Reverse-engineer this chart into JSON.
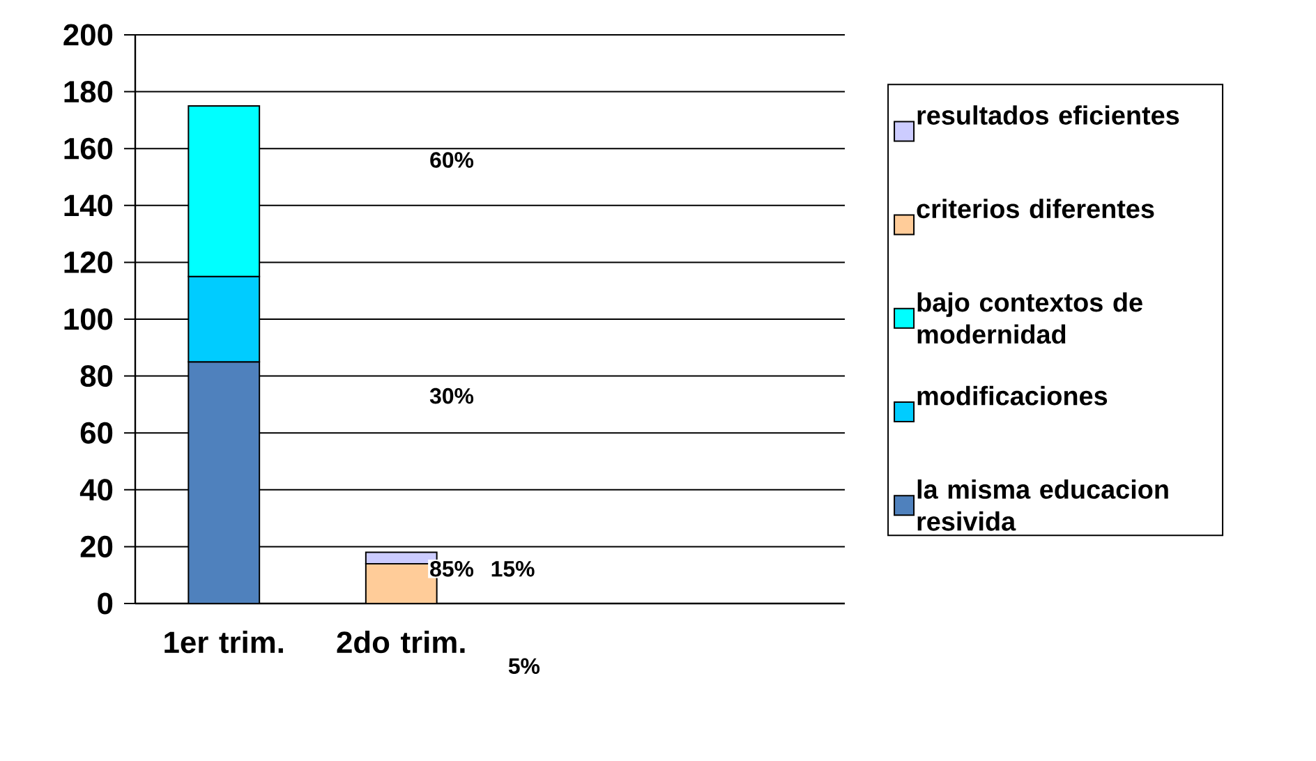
{
  "chart_data": {
    "type": "bar",
    "stacked": true,
    "categories": [
      "1er trim.",
      "2do trim.",
      null,
      null
    ],
    "series": [
      {
        "name": "la misma educacion resivida",
        "color": "#4f81bd",
        "values": [
          85,
          null,
          null,
          null
        ]
      },
      {
        "name": "modificaciones",
        "color": "#00ccff",
        "values": [
          30,
          null,
          null,
          null
        ]
      },
      {
        "name": "bajo contextos de modernidad",
        "color": "#00ffff",
        "values": [
          60,
          null,
          null,
          null
        ]
      },
      {
        "name": "criterios diferentes",
        "color": "#ffcc99",
        "values": [
          null,
          14,
          null,
          null
        ]
      },
      {
        "name": "resultados eficientes",
        "color": "#ccccff",
        "values": [
          null,
          4,
          null,
          null
        ]
      }
    ],
    "ylim": [
      0,
      200
    ],
    "yticks": [
      0,
      20,
      40,
      60,
      80,
      100,
      120,
      140,
      160,
      180,
      200
    ],
    "grid": "y",
    "legend": "right",
    "annotations": [
      "60%",
      "30%",
      "85%",
      "15%",
      "5%"
    ]
  }
}
